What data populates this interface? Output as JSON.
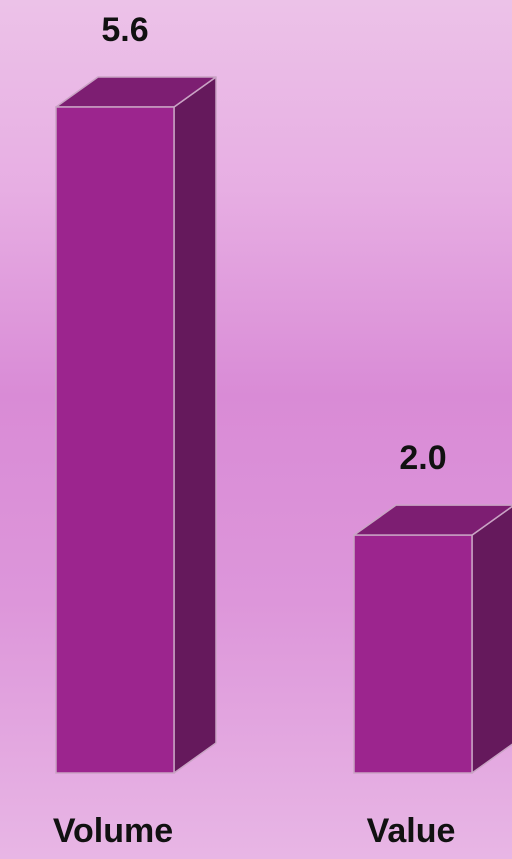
{
  "chart_data": {
    "type": "bar",
    "style": "3d-column",
    "categories": [
      "Volume",
      "Value"
    ],
    "values": [
      5.6,
      2.0
    ],
    "data_labels": [
      "5.6",
      "2.0"
    ],
    "title": "",
    "xlabel": "",
    "ylabel": "",
    "ylim": [
      0,
      5.6
    ],
    "grid": false,
    "legend": "none",
    "colors": {
      "front": "#9c258e",
      "top": "#7d1e72",
      "side": "#65195c",
      "edge": "#c9a3c4"
    }
  }
}
